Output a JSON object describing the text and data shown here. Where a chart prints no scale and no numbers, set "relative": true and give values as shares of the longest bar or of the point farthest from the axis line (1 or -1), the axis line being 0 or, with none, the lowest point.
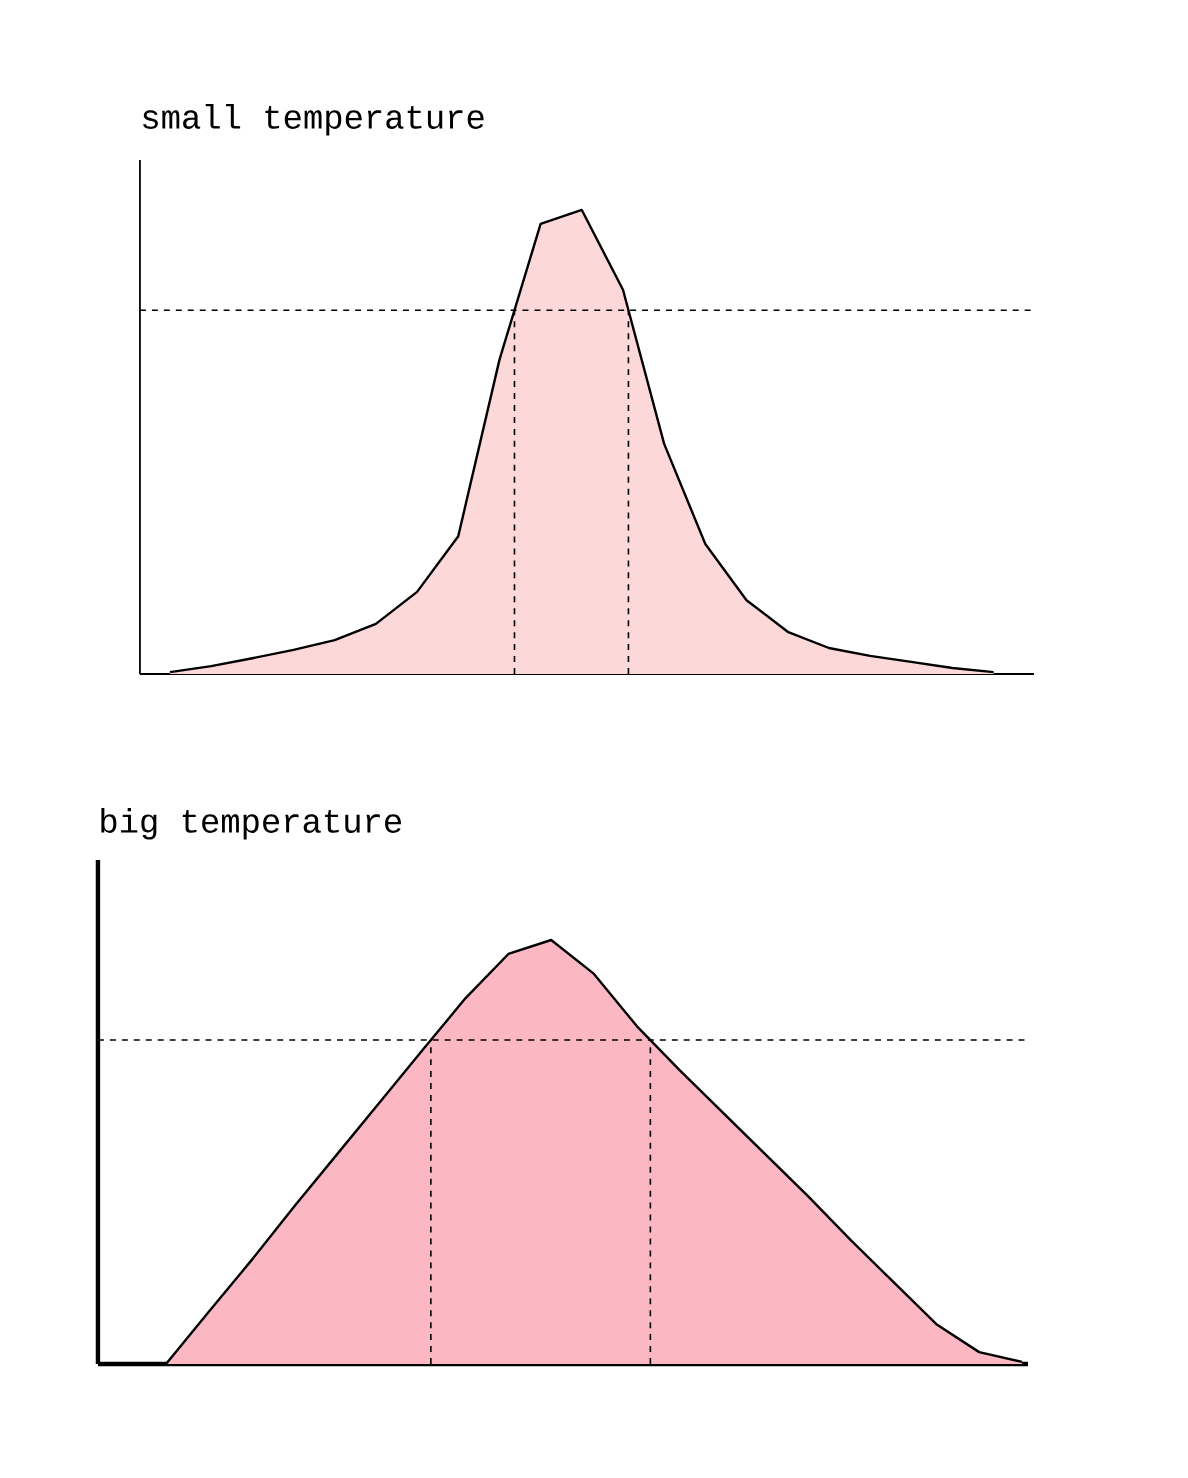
{
  "chart_data": [
    {
      "type": "area",
      "title": "small temperature",
      "relative": true,
      "color": "#fdd8d8",
      "categories": [
        null,
        null,
        null,
        null,
        null,
        null,
        null,
        null,
        null,
        null,
        null,
        null,
        null,
        null,
        null,
        null,
        null,
        null,
        null,
        null,
        null
      ],
      "values": [
        0.004,
        0.017,
        0.034,
        0.052,
        0.073,
        0.108,
        0.177,
        0.297,
        0.677,
        0.97,
        1,
        0.828,
        0.496,
        0.28,
        0.159,
        0.091,
        0.056,
        0.039,
        0.026,
        0.013,
        0.004
      ],
      "ref_lines": [
        {
          "axis": "y",
          "value": 0.784,
          "line_style": "dashed"
        }
      ]
    },
    {
      "type": "area",
      "title": "big temperature",
      "relative": true,
      "color": "#fbb8c2",
      "categories": [
        null,
        null,
        null,
        null,
        null,
        null,
        null,
        null,
        null,
        null,
        null,
        null,
        null,
        null,
        null,
        null,
        null,
        null,
        null,
        null,
        null
      ],
      "values": [
        0,
        0.123,
        0.245,
        0.372,
        0.495,
        0.618,
        0.741,
        0.863,
        0.967,
        1,
        0.92,
        0.797,
        0.693,
        0.594,
        0.495,
        0.396,
        0.292,
        0.193,
        0.094,
        0.028,
        0.005
      ],
      "ref_lines": [
        {
          "axis": "y",
          "value": 0.764,
          "line_style": "dashed"
        }
      ]
    }
  ]
}
